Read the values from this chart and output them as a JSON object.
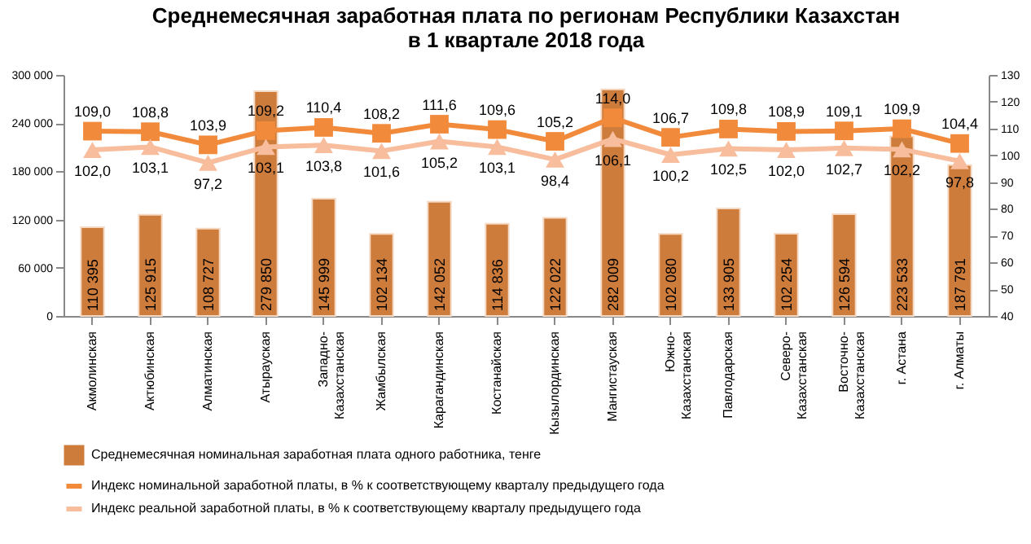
{
  "chart_data": {
    "type": "bar",
    "title": "Среднемесячная заработная плата по регионам Республики Казахстан\nв 1 квартале 2018 года",
    "categories": [
      "Акмолинская",
      "Актюбинская",
      "Алматинская",
      "Атырауская",
      "Западно-Казахстанская",
      "Жамбылская",
      "Карагандинская",
      "Костанайская",
      "Кызылординская",
      "Мангистауская",
      "Южно-Казахстанская",
      "Павлодарская",
      "Северо-Казахстанская",
      "Восточно-Казахстанская",
      "г. Астана",
      "г. Алматы"
    ],
    "series": [
      {
        "name": "Среднемесячная номинальная заработная плата одного работника, тенге",
        "color": "#cd7c3b",
        "values": [
          110395,
          125915,
          108727,
          279850,
          145999,
          102134,
          142052,
          114836,
          122022,
          282009,
          102080,
          133905,
          102254,
          126594,
          223533,
          187791
        ],
        "value_labels": [
          "110 395",
          "125 915",
          "108 727",
          "279 850",
          "145 999",
          "102 134",
          "142 052",
          "114 836",
          "122 022",
          "282 009",
          "102 080",
          "133 905",
          "102 254",
          "126 594",
          "223 533",
          "187 791"
        ]
      },
      {
        "name": "Индекс номинальной заработной платы, в % к соответствующему кварталу предыдущего года",
        "type": "line",
        "axis": "y2",
        "marker": "square",
        "color": "#f28a3c",
        "values": [
          109.0,
          108.8,
          103.9,
          109.2,
          110.4,
          108.2,
          111.6,
          109.6,
          105.2,
          114.0,
          106.7,
          109.8,
          108.9,
          109.1,
          109.9,
          104.4
        ],
        "value_labels": [
          "109,0",
          "108,8",
          "103,9",
          "109,2",
          "110,4",
          "108,2",
          "111,6",
          "109,6",
          "105,2",
          "114,0",
          "106,7",
          "109,8",
          "108,9",
          "109,1",
          "109,9",
          "104,4"
        ]
      },
      {
        "name": "Индекс реальной заработной платы, в % к соответствующему кварталу предыдущего года",
        "type": "line",
        "axis": "y2",
        "marker": "triangle",
        "color": "#f7bd9c",
        "values": [
          102.0,
          103.1,
          97.2,
          103.1,
          103.8,
          101.6,
          105.2,
          103.1,
          98.4,
          106.1,
          100.2,
          102.5,
          102.0,
          102.7,
          102.2,
          97.8
        ],
        "value_labels": [
          "102,0",
          "103,1",
          "97,2",
          "103,1",
          "103,8",
          "101,6",
          "105,2",
          "103,1",
          "98,4",
          "106,1",
          "100,2",
          "102,5",
          "102,0",
          "102,7",
          "102,2",
          "97,8"
        ]
      }
    ],
    "ylim": [
      0,
      300000
    ],
    "yticks": [
      {
        "value": 0,
        "label": "0"
      },
      {
        "value": 60000,
        "label": "60 000"
      },
      {
        "value": 120000,
        "label": "120 000"
      },
      {
        "value": 180000,
        "label": "180 000"
      },
      {
        "value": 240000,
        "label": "240 000"
      },
      {
        "value": 300000,
        "label": "300 000"
      }
    ],
    "y2lim": [
      40,
      130
    ],
    "y2ticks": [
      40,
      50,
      60,
      70,
      80,
      90,
      100,
      110,
      120,
      130
    ],
    "grid": false,
    "legend": "bottom"
  }
}
